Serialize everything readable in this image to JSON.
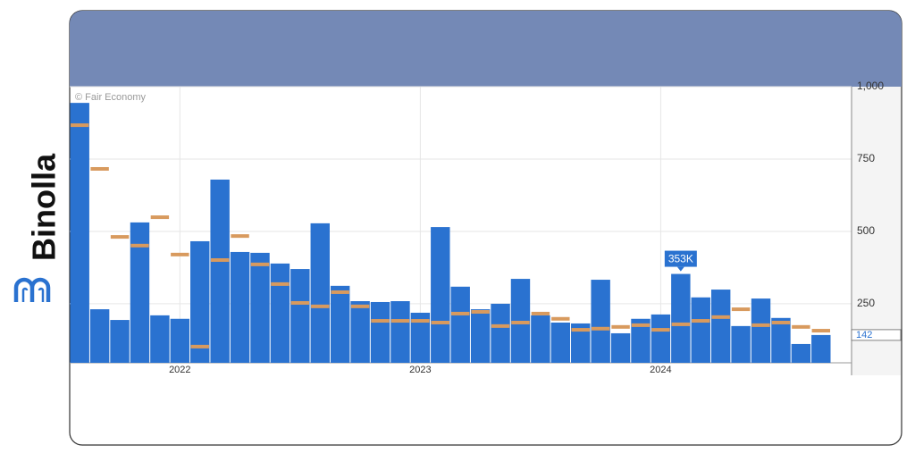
{
  "brand": "Binolla",
  "chart_data": {
    "type": "bar",
    "credit": "© Fair Economy",
    "categories": [
      null,
      null,
      null,
      null,
      null,
      "2022",
      null,
      null,
      null,
      null,
      null,
      null,
      null,
      null,
      null,
      null,
      null,
      "2023",
      null,
      null,
      null,
      null,
      null,
      null,
      null,
      null,
      null,
      null,
      null,
      "2024",
      null,
      null,
      null,
      null,
      null,
      null,
      null,
      null
    ],
    "series": [
      {
        "marker": "bar",
        "color": "#2a72d0",
        "values": [
          944,
          231,
          194,
          531,
          210,
          198,
          466,
          679,
          429,
          426,
          389,
          370,
          528,
          312,
          259,
          256,
          259,
          219,
          515,
          309,
          231,
          250,
          336,
          210,
          185,
          182,
          333,
          148,
          198,
          213,
          353,
          272,
          299,
          173,
          268,
          201,
          111,
          142
        ],
        "value_labels": [
          null,
          null,
          null,
          null,
          null,
          null,
          null,
          null,
          null,
          null,
          null,
          null,
          null,
          null,
          null,
          null,
          null,
          null,
          null,
          null,
          null,
          null,
          null,
          null,
          null,
          null,
          null,
          null,
          null,
          null,
          "353K",
          null,
          null,
          null,
          null,
          null,
          null,
          null
        ]
      },
      {
        "marker": "dash",
        "color": "#d89a5e",
        "values": [
          867,
          716,
          481,
          451,
          549,
          420,
          102,
          401,
          484,
          386,
          318,
          253,
          241,
          290,
          241,
          191,
          191,
          191,
          185,
          216,
          222,
          173,
          185,
          216,
          198,
          160,
          164,
          170,
          176,
          160,
          179,
          191,
          204,
          231,
          176,
          185,
          170,
          157
        ]
      }
    ],
    "ylim": [
      46,
      1000
    ],
    "yticks": [
      {
        "value": 1000,
        "label": "1,000"
      },
      750,
      500,
      250
    ],
    "grid": true,
    "axis_side": "right"
  }
}
